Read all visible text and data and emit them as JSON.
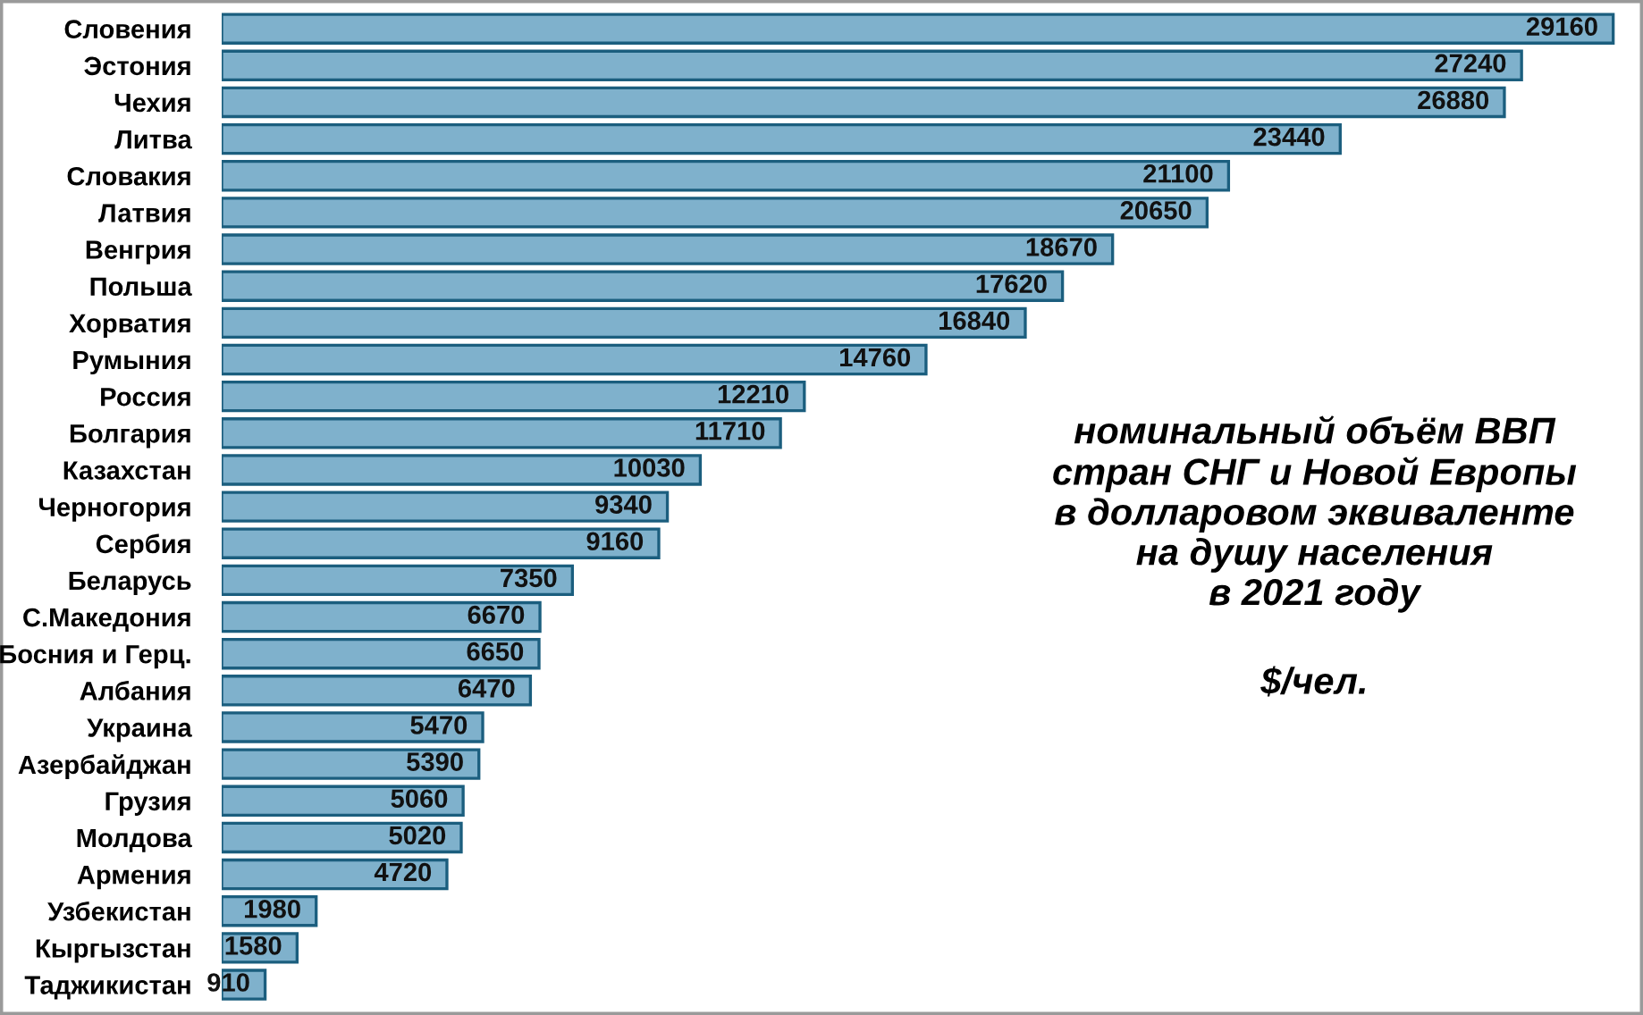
{
  "chart_data": {
    "type": "bar",
    "orientation": "horizontal",
    "title": "номинальный объём ВВП\nстран СНГ и Новой Европы\nв долларовом эквиваленте\nна душу населения\nв 2021 году",
    "subtitle": "$/чел.",
    "categories": [
      "Словения",
      "Эстония",
      "Чехия",
      "Литва",
      "Словакия",
      "Латвия",
      "Венгрия",
      "Польша",
      "Хорватия",
      "Румыния",
      "Россия",
      "Болгария",
      "Казахстан",
      "Черногория",
      "Сербия",
      "Беларусь",
      "С.Македония",
      "Босния и Герц.",
      "Албания",
      "Украина",
      "Азербайджан",
      "Грузия",
      "Молдова",
      "Армения",
      "Узбекистан",
      "Кыргызстан",
      "Таджикистан"
    ],
    "values": [
      29160,
      27240,
      26880,
      23440,
      21100,
      20650,
      18670,
      17620,
      16840,
      14760,
      12210,
      11710,
      10030,
      9340,
      9160,
      7350,
      6670,
      6650,
      6470,
      5470,
      5390,
      5060,
      5020,
      4720,
      1980,
      1580,
      910
    ],
    "color": "#7fb1cc",
    "data_labels": true,
    "tick_labels": "y",
    "grid": false,
    "legend": false
  }
}
